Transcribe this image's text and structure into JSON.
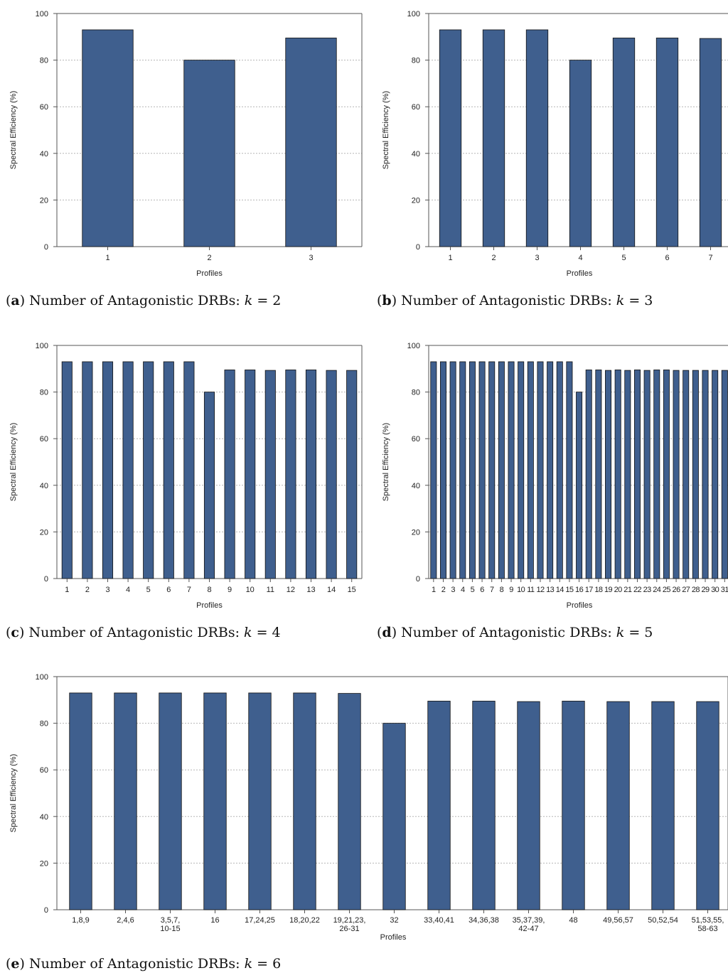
{
  "chart_data": [
    {
      "type": "bar",
      "panel": "a",
      "ylabel": "Spectral Efficiency (%)",
      "xlabel": "Profiles",
      "ylim": [
        0,
        100
      ],
      "yticks": [
        "0",
        "20",
        "40",
        "60",
        "80",
        "100"
      ],
      "grid": "horizontal dotted",
      "color": "#3F5F8E",
      "categories": [
        "1",
        "2",
        "3"
      ],
      "values": [
        93,
        80,
        89.5
      ],
      "caption": {
        "letter": "a",
        "text": "Number of Antagonistic DRBs: ",
        "var": "k",
        "rel": " = ",
        "num": "2"
      }
    },
    {
      "type": "bar",
      "panel": "b",
      "ylabel": "Spectral Efficiency (%)",
      "xlabel": "Profiles",
      "ylim": [
        0,
        100
      ],
      "yticks": [
        "0",
        "20",
        "40",
        "60",
        "80",
        "100"
      ],
      "grid": "horizontal dotted",
      "color": "#3F5F8E",
      "categories": [
        "1",
        "2",
        "3",
        "4",
        "5",
        "6",
        "7"
      ],
      "values": [
        93,
        93,
        93,
        80,
        89.5,
        89.5,
        89.3
      ],
      "caption": {
        "letter": "b",
        "text": "Number of Antagonistic DRBs: ",
        "var": "k",
        "rel": " = ",
        "num": "3"
      }
    },
    {
      "type": "bar",
      "panel": "c",
      "ylabel": "Spectral Efficiency (%)",
      "xlabel": "Profiles",
      "ylim": [
        0,
        100
      ],
      "yticks": [
        "0",
        "20",
        "40",
        "60",
        "80",
        "100"
      ],
      "grid": "horizontal dotted",
      "color": "#3F5F8E",
      "categories": [
        "1",
        "2",
        "3",
        "4",
        "5",
        "6",
        "7",
        "8",
        "9",
        "10",
        "11",
        "12",
        "13",
        "14",
        "15"
      ],
      "values": [
        93,
        93,
        93,
        93,
        93,
        93,
        93,
        80,
        89.5,
        89.5,
        89.3,
        89.5,
        89.5,
        89.3,
        89.3
      ],
      "caption": {
        "letter": "c",
        "text": "Number of Antagonistic DRBs: ",
        "var": "k",
        "rel": " = ",
        "num": "4"
      }
    },
    {
      "type": "bar",
      "panel": "d",
      "ylabel": "Spectral Efficiency (%)",
      "xlabel": "Profiles",
      "ylim": [
        0,
        100
      ],
      "yticks": [
        "0",
        "20",
        "40",
        "60",
        "80",
        "100"
      ],
      "grid": "horizontal dotted",
      "color": "#3F5F8E",
      "categories": [
        "1",
        "2",
        "3",
        "4",
        "5",
        "6",
        "7",
        "8",
        "9",
        "10",
        "11",
        "12",
        "13",
        "14",
        "15",
        "16",
        "17",
        "18",
        "19",
        "20",
        "21",
        "22",
        "23",
        "24",
        "25",
        "26",
        "27",
        "28",
        "29",
        "30",
        "31"
      ],
      "values": [
        93,
        93,
        93,
        93,
        93,
        93,
        93,
        93,
        93,
        93,
        93,
        93,
        93,
        93,
        93,
        80,
        89.5,
        89.5,
        89.3,
        89.5,
        89.3,
        89.5,
        89.3,
        89.5,
        89.5,
        89.3,
        89.3,
        89.3,
        89.3,
        89.3,
        89.3
      ],
      "caption": {
        "letter": "d",
        "text": "Number of Antagonistic DRBs: ",
        "var": "k",
        "rel": " = ",
        "num": "5"
      }
    },
    {
      "type": "bar",
      "panel": "e",
      "ylabel": "Spectral Efficiency (%)",
      "xlabel": "Profiles",
      "ylim": [
        0,
        100
      ],
      "yticks": [
        "0",
        "20",
        "40",
        "60",
        "80",
        "100"
      ],
      "grid": "horizontal dotted",
      "color": "#3F5F8E",
      "categories": [
        [
          "1,8,9"
        ],
        [
          "2,4,6"
        ],
        [
          "3,5,7,",
          "10-15"
        ],
        [
          "16"
        ],
        [
          "17,24,25"
        ],
        [
          "18,20,22"
        ],
        [
          "19,21,23,",
          "26-31"
        ],
        [
          "32"
        ],
        [
          "33,40,41"
        ],
        [
          "34,36,38"
        ],
        [
          "35,37,39,",
          "42-47"
        ],
        [
          "48"
        ],
        [
          "49,56,57"
        ],
        [
          "50,52,54"
        ],
        [
          "51,53,55,",
          "58-63"
        ]
      ],
      "values": [
        93,
        93,
        93,
        93,
        93,
        93,
        92.8,
        80,
        89.5,
        89.5,
        89.3,
        89.5,
        89.3,
        89.3,
        89.3
      ],
      "caption": {
        "letter": "e",
        "text": "Number of Antagonistic DRBs: ",
        "var": "k",
        "rel": " = ",
        "num": "6"
      }
    }
  ]
}
